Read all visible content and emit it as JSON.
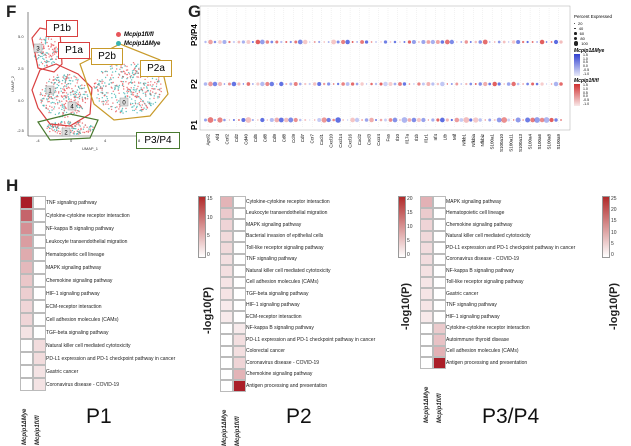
{
  "panels": {
    "F": "F",
    "G": "G",
    "H": "H"
  },
  "umap": {
    "legend": [
      "Mcpip1fl/fl",
      "Mcpip1ΔMye"
    ],
    "legend_colors": [
      "#e8555a",
      "#3bb3b0"
    ],
    "xlabel": "UMAP_1",
    "ylabel": "UMAP_2",
    "x_ticks": [
      "-4",
      "0",
      "4",
      "8"
    ],
    "y_ticks": [
      "5.0",
      "2.5",
      "0.0",
      "-2.5"
    ],
    "cluster_numbers": [
      "3",
      "1",
      "4",
      "0",
      "2"
    ],
    "regions": [
      {
        "label": "P1b",
        "color": "#d94040"
      },
      {
        "label": "P1a",
        "color": "#d94040"
      },
      {
        "label": "P2b",
        "color": "#c89a2a"
      },
      {
        "label": "P2a",
        "color": "#c89a2a"
      },
      {
        "label": "P3/P4",
        "color": "#4a7a30"
      }
    ]
  },
  "dotplot": {
    "rows": [
      "P3/P4",
      "P2",
      "P1"
    ],
    "genes": [
      "Apol2",
      "Afd",
      "Ccrl2",
      "Cd2",
      "Cd40",
      "Cd5",
      "Cd8",
      "Cd9",
      "Cd8",
      "Ccl9",
      "Cd7",
      "Ccr7",
      "Cxcl1",
      "Cxcl10",
      "Cxcl14",
      "Cxcl16",
      "Cxcl2",
      "Cxcl3",
      "Cxcr4",
      "Fas",
      "Il10",
      "Il17a",
      "Il1b",
      "Il1r1",
      "Irf4",
      "Ltb",
      "Mif",
      "Nfkb1",
      "Nfkbia",
      "Nfkbiz",
      "S100a1",
      "S100a10",
      "S100a11",
      "S100a13",
      "S100a4",
      "S100a6",
      "S100a8",
      "S100a9"
    ],
    "legend_size_title": "Percent Expressed",
    "legend_sizes": [
      "20",
      "40",
      "60",
      "80",
      "100"
    ],
    "legend_group1": "Mcpip1ΔMye",
    "legend_group2": "Mcpip1fl/fl",
    "legend_scale": [
      "1.5",
      "1.0",
      "0.5",
      "0.0",
      "-0.5",
      "-1.0"
    ]
  },
  "heatmaps": {
    "neglog_label": "-log10(P)",
    "columns": [
      "Mcpip1ΔMye",
      "Mcpip1fl/fl"
    ],
    "p1": {
      "title": "P1",
      "terms": [
        "TNF signaling pathway",
        "Cytokine-cytokine receptor interaction",
        "NF-kappa B signaling pathway",
        "Leukocyte transendothelial migration",
        "Hematopoietic cell lineage",
        "MAPK signaling pathway",
        "Chemokine signaling pathway",
        "HIF-1 signaling pathway",
        "ECM-receptor interaction",
        "Cell adhesion molecules (CAMs)",
        "TGF-beta signaling pathway",
        "Natural killer cell mediated cytotoxicity",
        "PD-L1 expression and PD-1 checkpoint pathway in cancer",
        "Gastric cancer",
        "Coronavirus disease - COVID-19"
      ],
      "values_mye": [
        16,
        11,
        8,
        7,
        6,
        5,
        4,
        3.5,
        3,
        3,
        2,
        0,
        0,
        0,
        0
      ],
      "values_flfl": [
        0,
        0,
        0,
        0,
        0,
        0,
        0,
        0,
        0,
        0,
        0,
        2.5,
        2.5,
        2,
        2
      ],
      "cbar_ticks": [
        "15",
        "10",
        "5",
        "0"
      ],
      "cbar_max": 16
    },
    "p2": {
      "title": "P2",
      "terms": [
        "Cytokine-cytokine receptor interaction",
        "Leukocyte transendothelial migration",
        "MAPK signaling pathway",
        "Bacterial invasion of epithelial cells",
        "Toll-like receptor signaling pathway",
        "TNF signaling pathway",
        "Natural killer cell mediated cytotoxicity",
        "Cell adhesion molecules (CAMs)",
        "TGF-beta signaling pathway",
        "HIF-1 signaling pathway",
        "ECM-receptor interaction",
        "NF-kappa B signaling pathway",
        "PD-L1 expression and PD-1 checkpoint pathway in cancer",
        "Colorectal cancer",
        "Coronavirus disease - COVID-19",
        "Chemokine signaling pathway",
        "Antigen processing and presentation"
      ],
      "values_mye": [
        7,
        5,
        4,
        3.5,
        3.5,
        3,
        3,
        2.5,
        2.5,
        2,
        2,
        0,
        0,
        0,
        0,
        0,
        0
      ],
      "values_flfl": [
        0,
        0,
        0,
        0,
        0,
        0,
        0,
        0,
        0,
        0,
        0,
        2,
        3,
        3,
        4,
        7,
        21
      ],
      "cbar_ticks": [
        "20",
        "15",
        "10",
        "5",
        "0"
      ],
      "cbar_max": 21
    },
    "p34": {
      "title": "P3/P4",
      "terms": [
        "MAPK signaling pathway",
        "Hematopoietic cell lineage",
        "Chemokine signaling pathway",
        "Natural killer cell mediated cytotoxicity",
        "PD-L1 expression and PD-1 checkpoint pathway in cancer",
        "Coronavirus disease - COVID-19",
        "NF-kappa B signaling pathway",
        "Toll-like receptor signaling pathway",
        "Gastric cancer",
        "TNF signaling pathway",
        "HIF-1 signaling pathway",
        "Cytokine-cytokine receptor interaction",
        "Autoimmune thyroid disease",
        "Cell adhesion molecules (CAMs)",
        "Antigen processing and presentation"
      ],
      "values_mye": [
        9,
        6,
        5,
        4.5,
        4,
        4,
        3.5,
        3,
        3,
        3,
        2.5,
        0,
        0,
        0,
        0
      ],
      "values_flfl": [
        0,
        0,
        0,
        0,
        0,
        0,
        0,
        0,
        0,
        0,
        0,
        6,
        7,
        9,
        26
      ],
      "cbar_ticks": [
        "25",
        "20",
        "15",
        "10",
        "5",
        "0"
      ],
      "cbar_max": 26
    }
  }
}
